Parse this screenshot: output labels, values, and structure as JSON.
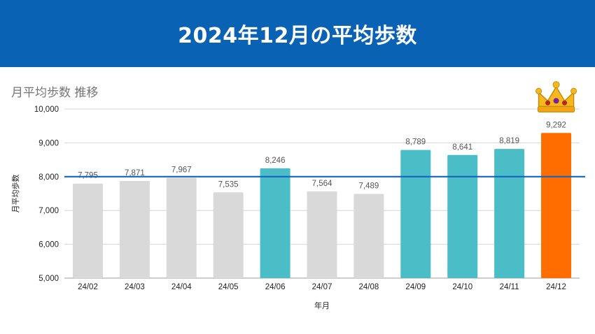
{
  "banner": {
    "title": "2024年12月の平均歩数"
  },
  "chart_data": {
    "type": "bar",
    "title": "月平均歩数 推移",
    "xlabel": "年月",
    "ylabel": "月平均歩数",
    "ylim": [
      5000,
      10000
    ],
    "yticks": [
      5000,
      6000,
      7000,
      8000,
      9000,
      10000
    ],
    "ytick_labels": [
      "5,000",
      "6,000",
      "7,000",
      "8,000",
      "9,000",
      "10,000"
    ],
    "categories": [
      "24/02",
      "24/03",
      "24/04",
      "24/05",
      "24/06",
      "24/07",
      "24/08",
      "24/09",
      "24/10",
      "24/11",
      "24/12"
    ],
    "values": [
      7795,
      7871,
      7967,
      7535,
      8246,
      7564,
      7489,
      8789,
      8641,
      8819,
      9292
    ],
    "value_labels": [
      "7,795",
      "7,871",
      "7,967",
      "7,535",
      "8,246",
      "7,564",
      "7,489",
      "8,789",
      "8,641",
      "8,819",
      "9,292"
    ],
    "bar_status": [
      "below",
      "below",
      "below",
      "below",
      "above",
      "below",
      "below",
      "above",
      "above",
      "above",
      "best"
    ],
    "reference_line": 8000,
    "highlight_icon": "crown-icon",
    "grid": true,
    "legend": "none"
  },
  "colors": {
    "banner": "#0a62b5",
    "bar_below": "#d9d9d9",
    "bar_above": "#4bbdc6",
    "bar_best": "#ff6d00",
    "reference_line": "#1565c0",
    "grid": "#d6d6d6"
  }
}
